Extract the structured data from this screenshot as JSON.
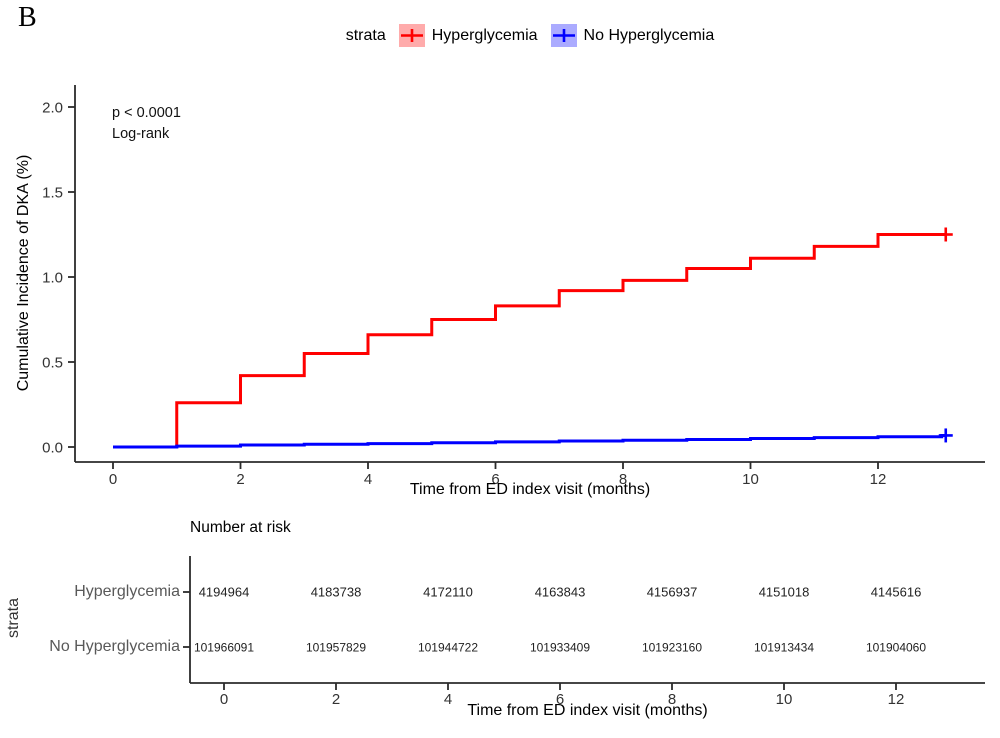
{
  "panel_label": "B",
  "legend": {
    "title": "strata",
    "items": [
      {
        "label": "Hyperglycemia",
        "color": "#FF0000",
        "fill": "#FFABAB"
      },
      {
        "label": "No Hyperglycemia",
        "color": "#0000FF",
        "fill": "#ABABFF"
      }
    ]
  },
  "main_plot": {
    "annotation": {
      "line1": "p < 0.0001",
      "line2": "Log-rank"
    },
    "ylabel": "Cumulative Incidence of DKA (%)",
    "xlabel": "Time from ED index visit (months)",
    "yticks": [
      0.0,
      0.5,
      1.0,
      1.5,
      2.0
    ],
    "ytick_labels": [
      "0.0",
      "0.5",
      "1.0",
      "1.5",
      "2.0"
    ],
    "xticks": [
      0,
      2,
      4,
      6,
      8,
      10,
      12
    ]
  },
  "chart_data": {
    "type": "line",
    "subtype": "step-cumulative-incidence",
    "title": "",
    "xlabel": "Time from ED index visit (months)",
    "ylabel": "Cumulative Incidence of DKA (%)",
    "xlim": [
      0,
      13.3
    ],
    "ylim": [
      0,
      2.0
    ],
    "grid": false,
    "legend_position": "top",
    "annotations": [
      "p < 0.0001",
      "Log-rank"
    ],
    "series": [
      {
        "name": "Hyperglycemia",
        "color": "#FF0000",
        "x": [
          0,
          1,
          2,
          3,
          4,
          5,
          6,
          7,
          8,
          9,
          10,
          11,
          12,
          13
        ],
        "y": [
          0.0,
          0.26,
          0.42,
          0.55,
          0.66,
          0.75,
          0.83,
          0.92,
          0.98,
          1.05,
          1.11,
          1.18,
          1.25,
          1.25
        ],
        "censored_end": true
      },
      {
        "name": "No Hyperglycemia",
        "color": "#0000FF",
        "x": [
          0,
          1,
          2,
          3,
          4,
          5,
          6,
          7,
          8,
          9,
          10,
          11,
          12,
          13
        ],
        "y": [
          0.0,
          0.005,
          0.012,
          0.016,
          0.02,
          0.025,
          0.03,
          0.035,
          0.04,
          0.044,
          0.05,
          0.055,
          0.06,
          0.068
        ],
        "censored_end": true
      }
    ]
  },
  "risk_table": {
    "title": "Number at risk",
    "axis_label": "strata",
    "xlabel": "Time from ED index visit (months)",
    "times": [
      0,
      2,
      4,
      6,
      8,
      10,
      12
    ],
    "rows": [
      {
        "label": "Hyperglycemia",
        "counts": [
          "4194964",
          "4183738",
          "4172110",
          "4163843",
          "4156937",
          "4151018",
          "4145616"
        ]
      },
      {
        "label": "No Hyperglycemia",
        "counts": [
          "101966091",
          "101957829",
          "101944722",
          "101933409",
          "101923160",
          "101913434",
          "101904060"
        ]
      }
    ]
  },
  "colors": {
    "red": "#FF0000",
    "blue": "#0000FF",
    "red_fill": "#FFABAB",
    "blue_fill": "#ABABFF",
    "axis": "#2b2b2b",
    "tick_text": "#333333",
    "number_text": "#222222",
    "row_label": "#595959"
  }
}
